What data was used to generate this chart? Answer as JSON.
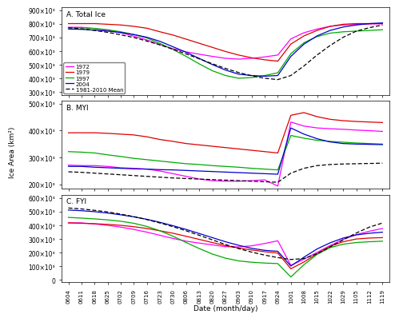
{
  "x_labels": [
    "0604",
    "0611",
    "0618",
    "0625",
    "0702",
    "0709",
    "0716",
    "0723",
    "0730",
    "0806",
    "0813",
    "0820",
    "0827",
    "0903",
    "0910",
    "0917",
    "0924",
    "1001",
    "1008",
    "1015",
    "1022",
    "1029",
    "1105",
    "1112",
    "1119"
  ],
  "n_points": 25,
  "total_ice": {
    "y1972": [
      775000,
      775000,
      765000,
      752000,
      735000,
      710000,
      682000,
      648000,
      618000,
      595000,
      578000,
      562000,
      548000,
      542000,
      548000,
      558000,
      572000,
      690000,
      735000,
      762000,
      782000,
      792000,
      796000,
      799000,
      801000
    ],
    "y1979": [
      802000,
      802000,
      802000,
      797000,
      792000,
      782000,
      768000,
      742000,
      718000,
      688000,
      658000,
      628000,
      598000,
      572000,
      552000,
      537000,
      527000,
      652000,
      712000,
      752000,
      782000,
      797000,
      802000,
      802000,
      802000
    ],
    "y1997": [
      772000,
      772000,
      767000,
      757000,
      742000,
      722000,
      697000,
      657000,
      612000,
      562000,
      507000,
      457000,
      422000,
      402000,
      407000,
      422000,
      442000,
      582000,
      662000,
      707000,
      732000,
      742000,
      747000,
      752000,
      757000
    ],
    "y2004": [
      762000,
      760000,
      754000,
      747000,
      737000,
      722000,
      702000,
      672000,
      632000,
      592000,
      547000,
      502000,
      462000,
      432000,
      422000,
      417000,
      422000,
      562000,
      652000,
      712000,
      752000,
      777000,
      792000,
      802000,
      807000
    ],
    "mean": [
      772000,
      764000,
      752000,
      738000,
      720000,
      700000,
      674000,
      646000,
      614000,
      580000,
      544000,
      508000,
      474000,
      444000,
      420000,
      402000,
      392000,
      422000,
      492000,
      572000,
      642000,
      702000,
      747000,
      772000,
      792000
    ]
  },
  "myi": {
    "y1972": [
      272000,
      270000,
      270000,
      267000,
      262000,
      260000,
      257000,
      250000,
      240000,
      230000,
      220000,
      214000,
      212000,
      212000,
      214000,
      217000,
      194000,
      432000,
      417000,
      410000,
      407000,
      405000,
      402000,
      400000,
      397000
    ],
    "y1979": [
      392000,
      392000,
      392000,
      390000,
      387000,
      384000,
      377000,
      367000,
      360000,
      352000,
      347000,
      342000,
      337000,
      332000,
      327000,
      322000,
      317000,
      457000,
      467000,
      452000,
      442000,
      437000,
      434000,
      432000,
      430000
    ],
    "y1997": [
      322000,
      320000,
      317000,
      310000,
      304000,
      297000,
      292000,
      287000,
      282000,
      277000,
      274000,
      270000,
      267000,
      264000,
      260000,
      257000,
      254000,
      382000,
      372000,
      364000,
      360000,
      357000,
      354000,
      352000,
      350000
    ],
    "y2004": [
      267000,
      267000,
      264000,
      262000,
      260000,
      258000,
      257000,
      255000,
      254000,
      252000,
      250000,
      248000,
      246000,
      244000,
      242000,
      240000,
      238000,
      410000,
      387000,
      370000,
      358000,
      352000,
      350000,
      349000,
      348000
    ],
    "mean": [
      247000,
      245000,
      242000,
      239000,
      236000,
      233000,
      230000,
      227000,
      224000,
      222000,
      220000,
      218000,
      216000,
      214000,
      212000,
      210000,
      208000,
      242000,
      260000,
      270000,
      274000,
      276000,
      277000,
      278000,
      279000
    ]
  },
  "fyi": {
    "y1972": [
      418000,
      418000,
      410000,
      400000,
      387000,
      370000,
      350000,
      327000,
      304000,
      284000,
      270000,
      257000,
      244000,
      242000,
      250000,
      267000,
      287000,
      107000,
      152000,
      202000,
      252000,
      297000,
      332000,
      357000,
      377000
    ],
    "y1979": [
      418000,
      415000,
      412000,
      407000,
      400000,
      390000,
      377000,
      360000,
      342000,
      320000,
      297000,
      274000,
      252000,
      234000,
      220000,
      207000,
      197000,
      82000,
      132000,
      192000,
      247000,
      280000,
      300000,
      307000,
      310000
    ],
    "y1997": [
      458000,
      453000,
      447000,
      440000,
      430000,
      415000,
      392000,
      360000,
      320000,
      274000,
      230000,
      190000,
      160000,
      140000,
      130000,
      124000,
      120000,
      22000,
      112000,
      187000,
      237000,
      262000,
      274000,
      280000,
      284000
    ],
    "y2004": [
      512000,
      507000,
      500000,
      490000,
      477000,
      462000,
      444000,
      422000,
      397000,
      370000,
      340000,
      310000,
      280000,
      254000,
      232000,
      217000,
      210000,
      102000,
      167000,
      227000,
      272000,
      307000,
      330000,
      342000,
      350000
    ],
    "mean": [
      527000,
      520000,
      510000,
      498000,
      482000,
      464000,
      442000,
      417000,
      390000,
      360000,
      327000,
      294000,
      260000,
      230000,
      204000,
      182000,
      164000,
      150000,
      157000,
      192000,
      242000,
      294000,
      344000,
      387000,
      417000
    ]
  },
  "colors": {
    "y1972": "#ff00ff",
    "y1979": "#dd0000",
    "y1997": "#00aa00",
    "y2004": "#0000cc",
    "mean": "#000000"
  },
  "panel_titles": [
    "A. Total Ice",
    "B. MYI",
    "C. FYI"
  ],
  "ylabel": "Ice Area (km²)",
  "xlabel": "Date (month/day)",
  "ylims_A": [
    280000,
    920000
  ],
  "ylims_B": [
    185000,
    510000
  ],
  "ylims_C": [
    -15000,
    625000
  ],
  "yticks_A": [
    300000,
    400000,
    500000,
    600000,
    700000,
    800000,
    900000
  ],
  "yticks_B": [
    200000,
    300000,
    400000,
    500000
  ],
  "yticks_C": [
    0,
    100000,
    200000,
    300000,
    400000,
    500000,
    600000
  ],
  "legend_labels": [
    "1972",
    "1979",
    "1997",
    "2004",
    "1981-2010 Mean"
  ]
}
